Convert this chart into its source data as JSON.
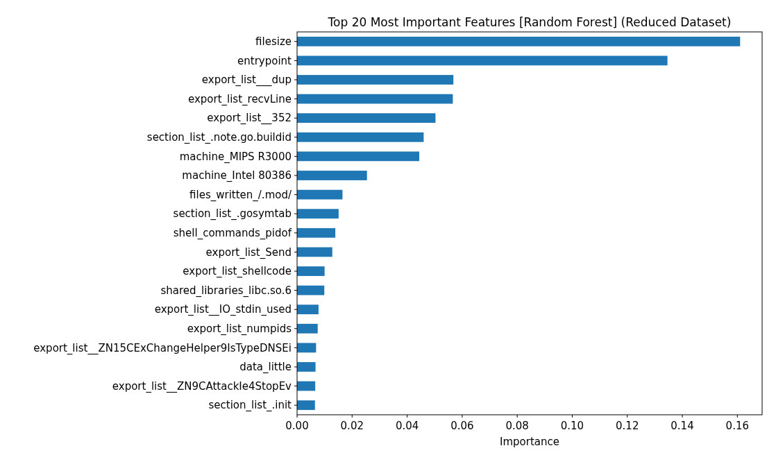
{
  "chart_data": {
    "type": "bar",
    "orientation": "horizontal",
    "title": "Top 20 Most Important Features [Random Forest] (Reduced Dataset)",
    "xlabel": "Importance",
    "categories": [
      "filesize",
      "entrypoint",
      "export_list___dup",
      "export_list_recvLine",
      "export_list__352",
      "section_list_.note.go.buildid",
      "machine_MIPS R3000",
      "machine_Intel 80386",
      "files_written_/.mod/",
      "section_list_.gosymtab",
      "shell_commands_pidof",
      "export_list_Send",
      "export_list_shellcode",
      "shared_libraries_libc.so.6",
      "export_list__IO_stdin_used",
      "export_list_numpids",
      "export_list__ZN15CExChangeHelper9IsTypeDNSEi",
      "data_little",
      "export_list__ZN9CAttackIe4StopEv",
      "section_list_.init"
    ],
    "values": [
      0.161,
      0.1346,
      0.0568,
      0.0566,
      0.0503,
      0.046,
      0.0444,
      0.0254,
      0.0165,
      0.0151,
      0.0139,
      0.0128,
      0.01,
      0.0099,
      0.0078,
      0.0075,
      0.0069,
      0.0067,
      0.0066,
      0.0065
    ],
    "color": "#1f77b4",
    "xlim": [
      0,
      0.169
    ],
    "xticks": [
      {
        "value": 0,
        "label": "0.00"
      },
      {
        "value": 0.02,
        "label": "0.02"
      },
      {
        "value": 0.04,
        "label": "0.04"
      },
      {
        "value": 0.06,
        "label": "0.06"
      },
      {
        "value": 0.08,
        "label": "0.08"
      },
      {
        "value": 0.1,
        "label": "0.10"
      },
      {
        "value": 0.12,
        "label": "0.12"
      },
      {
        "value": 0.14,
        "label": "0.14"
      },
      {
        "value": 0.16,
        "label": "0.16"
      }
    ]
  }
}
